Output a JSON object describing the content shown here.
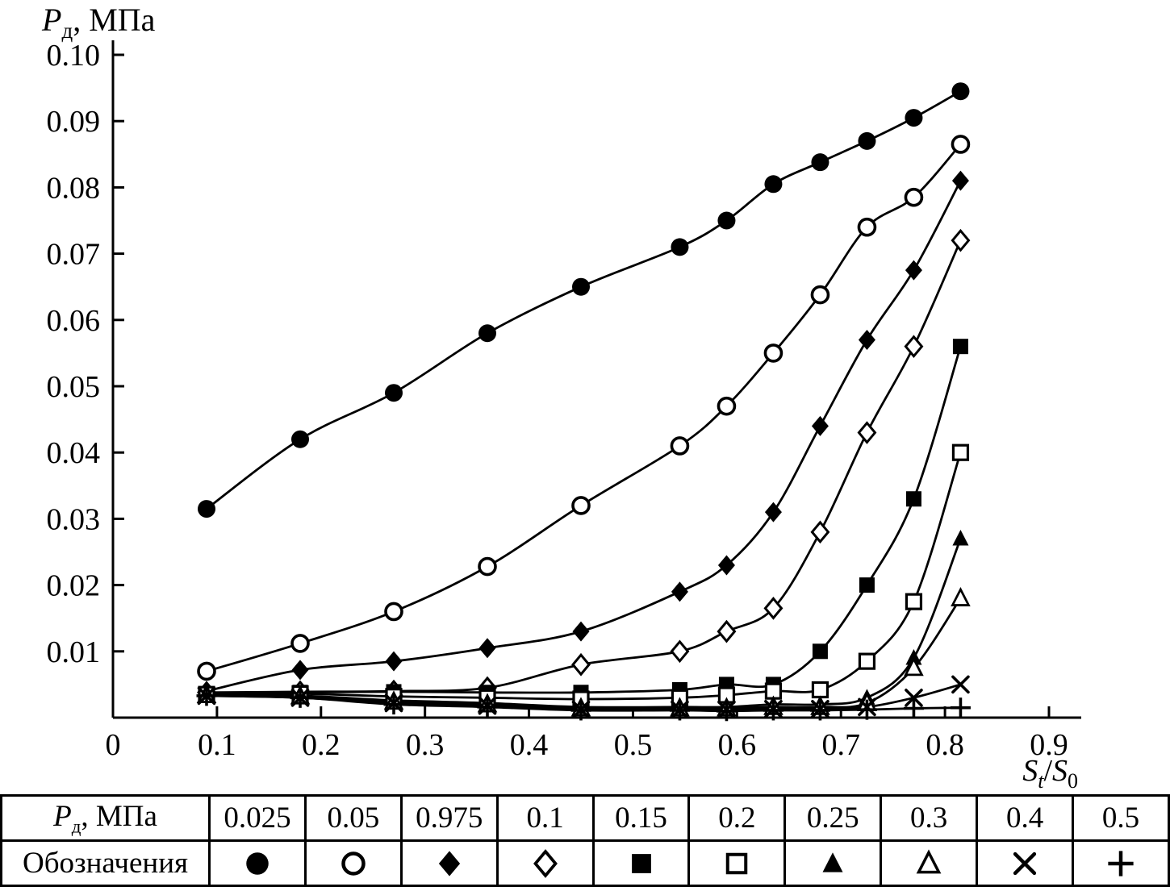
{
  "colors": {
    "line": "#000000",
    "bg": "#ffffff"
  },
  "labels": {
    "y_title": {
      "main": "P",
      "sub": "д",
      "rest": ", МПа"
    },
    "x_title": {
      "s1": "S",
      "sub1": "t",
      "sep": "/",
      "s2": "S",
      "sub2": "0"
    }
  },
  "axes": {
    "x": {
      "min": 0,
      "max": 0.9,
      "ticks": [
        {
          "v": 0,
          "label": "0"
        },
        {
          "v": 0.1,
          "label": "0.1"
        },
        {
          "v": 0.2,
          "label": "0.2"
        },
        {
          "v": 0.3,
          "label": "0.3"
        },
        {
          "v": 0.4,
          "label": "0.4"
        },
        {
          "v": 0.5,
          "label": "0.5"
        },
        {
          "v": 0.6,
          "label": "0.6"
        },
        {
          "v": 0.7,
          "label": "0.7"
        },
        {
          "v": 0.8,
          "label": "0.8"
        },
        {
          "v": 0.9,
          "label": "0.9"
        }
      ]
    },
    "y": {
      "min": 0,
      "max": 0.1,
      "ticks": [
        {
          "v": 0.01,
          "label": "0.01"
        },
        {
          "v": 0.02,
          "label": "0.02"
        },
        {
          "v": 0.03,
          "label": "0.03"
        },
        {
          "v": 0.04,
          "label": "0.04"
        },
        {
          "v": 0.05,
          "label": "0.05"
        },
        {
          "v": 0.06,
          "label": "0.06"
        },
        {
          "v": 0.07,
          "label": "0.07"
        },
        {
          "v": 0.08,
          "label": "0.08"
        },
        {
          "v": 0.09,
          "label": "0.09"
        },
        {
          "v": 0.1,
          "label": "0.10"
        }
      ]
    }
  },
  "chart_data": {
    "type": "line",
    "title": "",
    "xlabel": "St/S0",
    "ylabel": "Pд, МПа",
    "xlim": [
      0,
      0.9
    ],
    "ylim": [
      0,
      0.1
    ],
    "grid": false,
    "legend_position": "table-below",
    "x": [
      0.09,
      0.18,
      0.27,
      0.36,
      0.45,
      0.545,
      0.59,
      0.635,
      0.68,
      0.725,
      0.77,
      0.815
    ],
    "series": [
      {
        "name": "0.025",
        "marker": "circle-filled",
        "values": [
          0.0315,
          0.042,
          0.049,
          0.058,
          0.065,
          0.071,
          0.075,
          0.0805,
          0.0838,
          0.087,
          0.0905,
          0.0945
        ]
      },
      {
        "name": "0.05",
        "marker": "circle-open",
        "values": [
          0.007,
          0.0112,
          0.016,
          0.0228,
          0.032,
          0.041,
          0.047,
          0.055,
          0.0638,
          0.074,
          0.0785,
          0.0865
        ]
      },
      {
        "name": "0.975",
        "marker": "diamond-filled",
        "values": [
          0.004,
          0.0072,
          0.0085,
          0.0105,
          0.013,
          0.019,
          0.023,
          0.031,
          0.044,
          0.057,
          0.0675,
          0.081
        ]
      },
      {
        "name": "0.1",
        "marker": "diamond-open",
        "values": [
          0.0038,
          0.0039,
          0.004,
          0.0045,
          0.008,
          0.01,
          0.013,
          0.0165,
          0.028,
          0.043,
          0.056,
          0.072
        ]
      },
      {
        "name": "0.15",
        "marker": "square-filled",
        "values": [
          0.0036,
          0.0038,
          0.0039,
          0.0038,
          0.0038,
          0.0042,
          0.005,
          0.005,
          0.01,
          0.02,
          0.033,
          0.056
        ]
      },
      {
        "name": "0.2",
        "marker": "square-open",
        "values": [
          0.0035,
          0.0036,
          0.0032,
          0.003,
          0.0028,
          0.003,
          0.0034,
          0.004,
          0.0042,
          0.0085,
          0.0175,
          0.04
        ]
      },
      {
        "name": "0.25",
        "marker": "triangle-filled",
        "values": [
          0.0034,
          0.0033,
          0.0026,
          0.0022,
          0.0016,
          0.0016,
          0.0016,
          0.002,
          0.002,
          0.003,
          0.009,
          0.027
        ]
      },
      {
        "name": "0.3",
        "marker": "triangle-open",
        "values": [
          0.0034,
          0.0032,
          0.0024,
          0.002,
          0.0014,
          0.0014,
          0.0014,
          0.0016,
          0.0016,
          0.0022,
          0.0075,
          0.018
        ]
      },
      {
        "name": "0.4",
        "marker": "x-cross",
        "values": [
          0.0033,
          0.003,
          0.0022,
          0.0018,
          0.0012,
          0.0012,
          0.0012,
          0.0013,
          0.0013,
          0.0016,
          0.003,
          0.005
        ]
      },
      {
        "name": "0.5",
        "marker": "plus",
        "values": [
          0.0033,
          0.003,
          0.002,
          0.0016,
          0.0011,
          0.0011,
          0.001,
          0.0011,
          0.0011,
          0.0012,
          0.0014,
          0.0015
        ]
      }
    ]
  },
  "table": {
    "row1_header_main": "P",
    "row1_header_sub": "д",
    "row1_header_rest": ", МПа",
    "row2_header": "Обозначения",
    "pressures": [
      "0.025",
      "0.05",
      "0.975",
      "0.1",
      "0.15",
      "0.2",
      "0.25",
      "0.3",
      "0.4",
      "0.5"
    ],
    "markers": [
      "circle-filled",
      "circle-open",
      "diamond-filled",
      "diamond-open",
      "square-filled",
      "square-open",
      "triangle-filled",
      "triangle-open",
      "x-cross",
      "plus"
    ]
  }
}
